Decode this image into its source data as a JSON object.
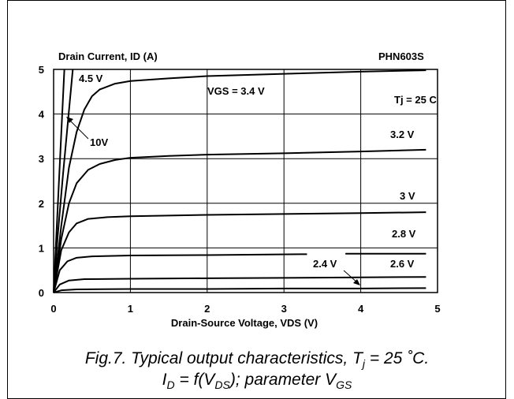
{
  "chart_data": {
    "type": "line",
    "ylabel": "Drain Current, ID (A)",
    "xlabel": "Drain-Source Voltage, VDS (V)",
    "color": "#000000",
    "grid": true,
    "xlim": [
      0,
      5
    ],
    "xticks": [
      0,
      1,
      2,
      3,
      4,
      5
    ],
    "ylim": [
      0,
      5
    ],
    "yticks": [
      0,
      1,
      2,
      3,
      4,
      5
    ],
    "series": [
      {
        "x": [
          0,
          0.14
        ],
        "values": [
          0,
          5
        ]
      },
      {
        "x": [
          0,
          0.05,
          0.12,
          0.25
        ],
        "values": [
          0,
          1.2,
          2.6,
          5
        ]
      },
      {
        "x": [
          0,
          0.1,
          0.2,
          0.3,
          0.4,
          0.5,
          0.6,
          0.8,
          1,
          1.5,
          2,
          3,
          4,
          4.85
        ],
        "values": [
          0,
          1.5,
          2.8,
          3.6,
          4.1,
          4.4,
          4.55,
          4.68,
          4.74,
          4.8,
          4.85,
          4.9,
          4.95,
          4.98
        ]
      },
      {
        "x": [
          0,
          0.1,
          0.2,
          0.3,
          0.45,
          0.6,
          0.8,
          1,
          1.5,
          2,
          3,
          4,
          4.85
        ],
        "values": [
          0,
          1.2,
          2.0,
          2.45,
          2.75,
          2.88,
          2.97,
          3.02,
          3.06,
          3.09,
          3.12,
          3.16,
          3.2
        ]
      },
      {
        "x": [
          0,
          0.1,
          0.2,
          0.3,
          0.45,
          0.7,
          1,
          2,
          3,
          4,
          4.85
        ],
        "values": [
          0,
          0.95,
          1.35,
          1.55,
          1.65,
          1.69,
          1.71,
          1.74,
          1.76,
          1.78,
          1.8
        ]
      },
      {
        "x": [
          0,
          0.08,
          0.18,
          0.3,
          0.5,
          1,
          2,
          3.3,
          3.5,
          3.8,
          4.85
        ],
        "values": [
          0,
          0.5,
          0.7,
          0.78,
          0.81,
          0.83,
          0.84,
          0.86,
          null,
          0.87,
          0.87
        ]
      },
      {
        "x": [
          0,
          0.08,
          0.2,
          0.4,
          1,
          2,
          3,
          4,
          4.85
        ],
        "values": [
          0,
          0.18,
          0.27,
          0.3,
          0.31,
          0.32,
          0.33,
          0.34,
          0.35
        ]
      },
      {
        "x": [
          0,
          0.1,
          0.3,
          1,
          2,
          3,
          4,
          4.85
        ],
        "values": [
          0,
          0.05,
          0.07,
          0.08,
          0.08,
          0.09,
          0.09,
          0.1
        ]
      }
    ],
    "annotations": [
      "PHN603S",
      "4.5 V",
      "10V",
      "VGS = 3.4 V",
      "Tj = 25 C",
      "3.2 V",
      "3 V",
      "2.8 V",
      "2.4 V",
      "2.6 V"
    ],
    "caption": [
      [
        {
          "text": "Fig.7.  Typical output characteristics, T"
        },
        {
          "text": "j",
          "sub": true
        },
        {
          "text": " = 25 ˚C."
        }
      ],
      [
        {
          "text": "I"
        },
        {
          "text": "D",
          "sub": true
        },
        {
          "text": " = f(V"
        },
        {
          "text": "DS",
          "sub": true
        },
        {
          "text": "); parameter V"
        },
        {
          "text": "GS",
          "sub": true
        }
      ]
    ]
  }
}
